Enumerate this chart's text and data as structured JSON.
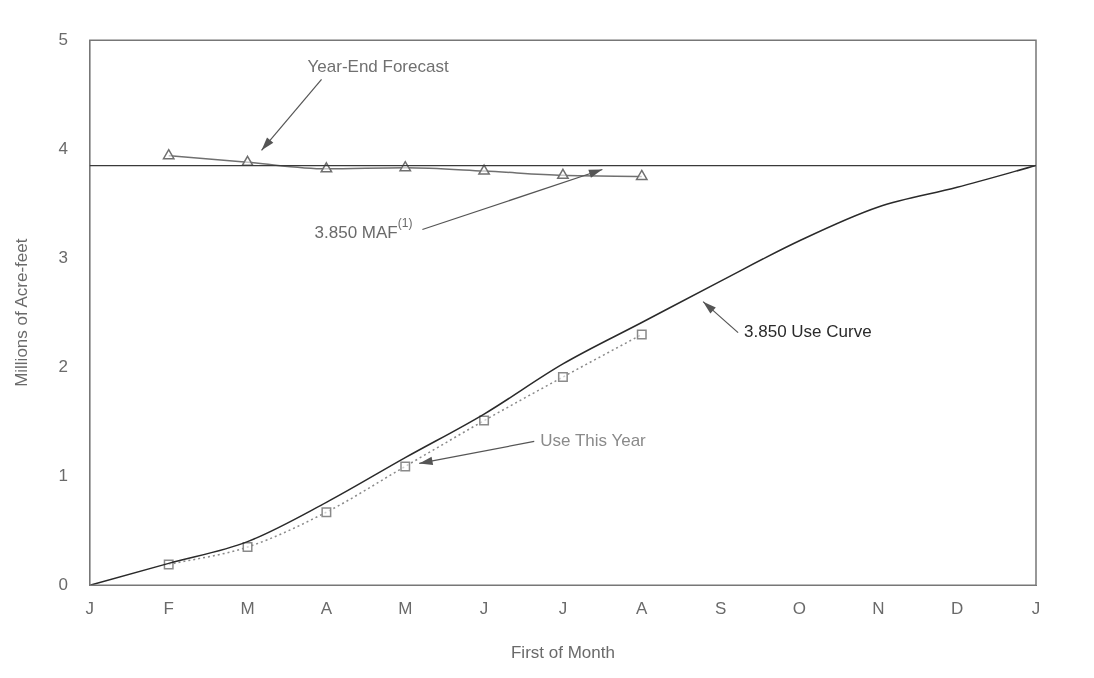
{
  "chart_data": {
    "type": "line",
    "xlabel": "First of Month",
    "ylabel": "Millions of Acre-feet",
    "categories": [
      "J",
      "F",
      "M",
      "A",
      "M",
      "J",
      "J",
      "A",
      "S",
      "O",
      "N",
      "D",
      "J"
    ],
    "series": [
      {
        "name": "Year-End Forecast",
        "color": "#707070",
        "marker": "triangle",
        "line_style": "solid",
        "values": [
          null,
          3.94,
          3.88,
          3.82,
          3.83,
          3.8,
          3.76,
          3.75,
          null,
          null,
          null,
          null,
          null
        ]
      },
      {
        "name": "3.850 Use Curve",
        "color": "#2a2a2a",
        "marker": "none",
        "line_style": "solid",
        "values": [
          0,
          0.2,
          0.4,
          0.76,
          1.17,
          1.57,
          2.03,
          2.41,
          2.79,
          3.16,
          3.47,
          3.65,
          3.85
        ]
      },
      {
        "name": "Use This Year",
        "color": "#8a8a8a",
        "marker": "square",
        "line_style": "dotted",
        "values": [
          null,
          0.19,
          0.35,
          0.67,
          1.09,
          1.51,
          1.91,
          2.3,
          null,
          null,
          null,
          null,
          null
        ]
      }
    ],
    "ref_lines": [
      {
        "axis": "y",
        "value": 3.85,
        "label": "3.850 MAF$^{(1)}$",
        "color": "#3a3a3a"
      }
    ],
    "ylim": [
      0,
      5
    ],
    "yticks": [
      0,
      1,
      2,
      3,
      4,
      5
    ],
    "grid": false,
    "legend": false
  }
}
